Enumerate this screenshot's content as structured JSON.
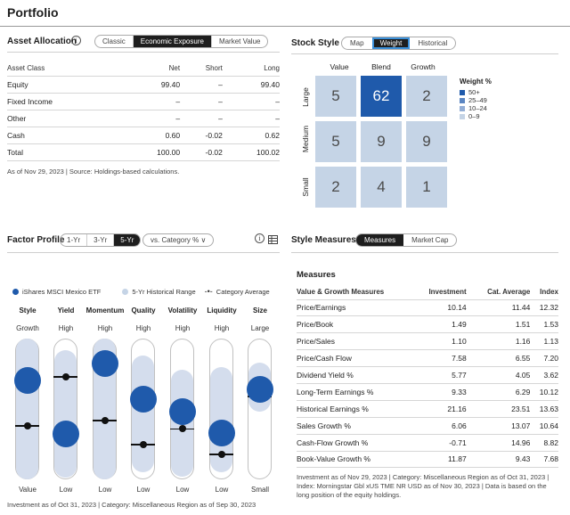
{
  "page_title": "Portfolio",
  "asset_allocation": {
    "title": "Asset Allocation",
    "tabs": [
      "Classic",
      "Economic Exposure",
      "Market Value"
    ],
    "active_tab": "Economic Exposure",
    "headers": [
      "Asset Class",
      "Net",
      "Short",
      "Long"
    ],
    "rows": [
      [
        "Equity",
        "99.40",
        "–",
        "99.40"
      ],
      [
        "Fixed Income",
        "–",
        "–",
        "–"
      ],
      [
        "Other",
        "–",
        "–",
        "–"
      ],
      [
        "Cash",
        "0.60",
        "-0.02",
        "0.62"
      ],
      [
        "Total",
        "100.00",
        "-0.02",
        "100.02"
      ]
    ],
    "note": "As of Nov 29, 2023 | Source: Holdings-based calculations."
  },
  "stock_style": {
    "title": "Stock Style",
    "tabs": [
      "Map",
      "Weight",
      "Historical"
    ],
    "active_tab": "Weight",
    "columns": [
      "Value",
      "Blend",
      "Growth"
    ],
    "rows": [
      "Large",
      "Medium",
      "Small"
    ],
    "cells": [
      [
        "5",
        "62",
        "2"
      ],
      [
        "5",
        "9",
        "9"
      ],
      [
        "2",
        "4",
        "1"
      ]
    ],
    "legend_title": "Weight %",
    "legend": [
      {
        "label": "50+",
        "color": "#1f5aab"
      },
      {
        "label": "25–49",
        "color": "#5b86c2"
      },
      {
        "label": "10–24",
        "color": "#93aed6"
      },
      {
        "label": "0–9",
        "color": "#c5d4e6"
      }
    ]
  },
  "factor_profile": {
    "title": "Factor Profile",
    "periods": [
      "1-Yr",
      "3-Yr",
      "5-Yr"
    ],
    "active_period": "5-Yr",
    "compare_dropdown": "vs. Category %",
    "legend": {
      "fund": "iShares MSCI Mexico ETF",
      "range": "5-Yr Historical Range",
      "category": "Category Average"
    },
    "factors": [
      {
        "name": "Style",
        "top": "Growth",
        "bottom": "Value",
        "fund": 0.3,
        "category": 0.62,
        "range": [
          0.0,
          1.0
        ]
      },
      {
        "name": "Yield",
        "top": "High",
        "bottom": "Low",
        "fund": 0.68,
        "category": 0.27,
        "range": [
          0.08,
          0.99
        ]
      },
      {
        "name": "Momentum",
        "top": "High",
        "bottom": "Low",
        "fund": 0.18,
        "category": 0.58,
        "range": [
          0.0,
          1.0
        ]
      },
      {
        "name": "Quality",
        "top": "High",
        "bottom": "Low",
        "fund": 0.43,
        "category": 0.75,
        "range": [
          0.12,
          0.95
        ]
      },
      {
        "name": "Volatility",
        "top": "High",
        "bottom": "Low",
        "fund": 0.52,
        "category": 0.64,
        "range": [
          0.22,
          0.98
        ]
      },
      {
        "name": "Liquidity",
        "top": "High",
        "bottom": "Low",
        "fund": 0.67,
        "category": 0.82,
        "range": [
          0.2,
          0.95
        ]
      },
      {
        "name": "Size",
        "top": "Large",
        "bottom": "Small",
        "fund": 0.36,
        "category": 0.41,
        "range": [
          0.17,
          0.52
        ]
      }
    ],
    "note": "Investment as of Oct 31, 2023 | Category: Miscellaneous Region as of Sep 30, 2023"
  },
  "style_measures": {
    "title": "Style Measures",
    "tabs": [
      "Measures",
      "Market Cap"
    ],
    "active_tab": "Measures",
    "subtitle": "Measures",
    "headers": [
      "Value & Growth Measures",
      "Investment",
      "Cat. Average",
      "Index"
    ],
    "rows": [
      [
        "Price/Earnings",
        "10.14",
        "11.44",
        "12.32"
      ],
      [
        "Price/Book",
        "1.49",
        "1.51",
        "1.53"
      ],
      [
        "Price/Sales",
        "1.10",
        "1.16",
        "1.13"
      ],
      [
        "Price/Cash Flow",
        "7.58",
        "6.55",
        "7.20"
      ],
      [
        "Dividend Yield %",
        "5.77",
        "4.05",
        "3.62"
      ],
      [
        "Long-Term Earnings %",
        "9.33",
        "6.29",
        "10.12"
      ],
      [
        "Historical Earnings %",
        "21.16",
        "23.51",
        "13.63"
      ],
      [
        "Sales Growth %",
        "6.06",
        "13.07",
        "10.64"
      ],
      [
        "Cash-Flow Growth %",
        "-0.71",
        "14.96",
        "8.82"
      ],
      [
        "Book-Value Growth %",
        "11.87",
        "9.43",
        "7.68"
      ]
    ],
    "note_lines": [
      "Investment as of Nov 29, 2023 | Category: Miscellaneous Region as of Oct 31, 2023 |",
      "Index: Morningstar Gbl xUS TME NR USD as of Nov 30, 2023 | Data is based on the",
      "long position of the equity holdings."
    ]
  }
}
